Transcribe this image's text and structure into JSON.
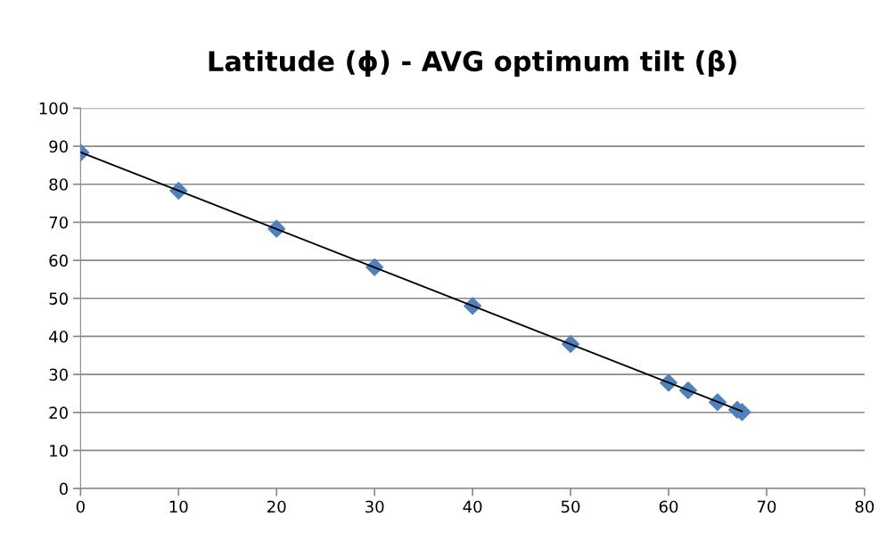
{
  "chart_data": {
    "type": "scatter",
    "title": "Latitude (ϕ) - AVG optimum tilt (β)",
    "series": [
      {
        "color": "#4f81bd",
        "marker": "diamond",
        "x": [
          0,
          10,
          20,
          30,
          40,
          50,
          60,
          62,
          65,
          67,
          67.5
        ],
        "values": [
          88.3,
          78.3,
          68.3,
          58.2,
          48,
          38,
          27.8,
          25.8,
          22.7,
          20.7,
          20.1
        ]
      },
      {
        "type": "line",
        "color": "#000000",
        "marker": "none",
        "x": [
          0,
          67.5
        ],
        "values": [
          88.4,
          20.3
        ]
      }
    ],
    "xlim": [
      0,
      80
    ],
    "xticks": [
      0,
      10,
      20,
      30,
      40,
      50,
      60,
      70,
      80
    ],
    "ylim": [
      0,
      100
    ],
    "yticks": [
      0,
      10,
      20,
      30,
      40,
      50,
      60,
      70,
      80,
      90,
      100
    ],
    "grid": "y",
    "legend": false
  }
}
